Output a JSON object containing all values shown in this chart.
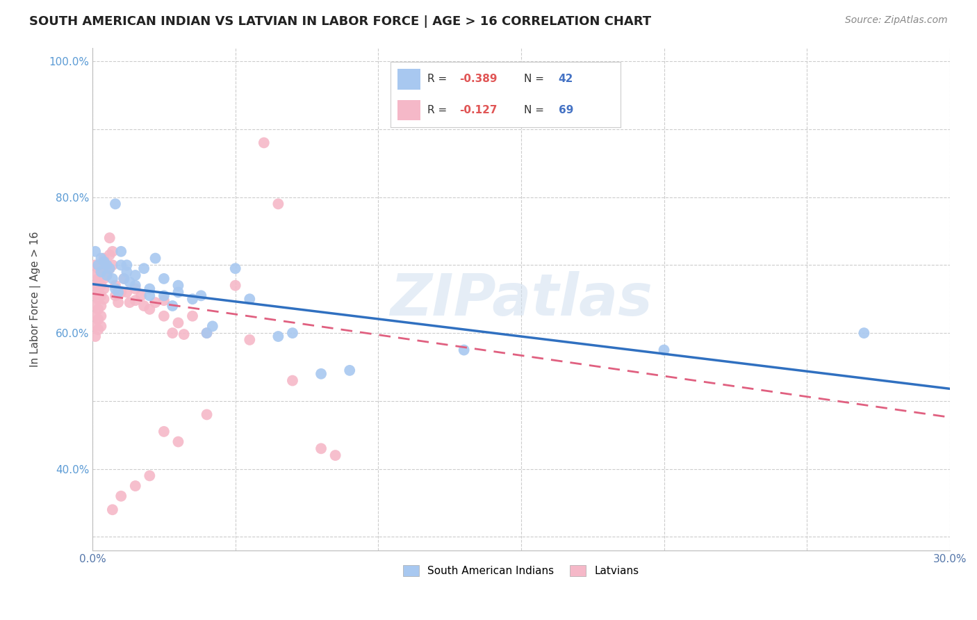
{
  "title": "SOUTH AMERICAN INDIAN VS LATVIAN IN LABOR FORCE | AGE > 16 CORRELATION CHART",
  "source": "Source: ZipAtlas.com",
  "ylabel": "In Labor Force | Age > 16",
  "x_min": 0.0,
  "x_max": 0.3,
  "y_min": 0.28,
  "y_max": 1.02,
  "x_ticks": [
    0.0,
    0.05,
    0.1,
    0.15,
    0.2,
    0.25,
    0.3
  ],
  "y_ticks": [
    0.3,
    0.4,
    0.5,
    0.6,
    0.7,
    0.8,
    0.9,
    1.0
  ],
  "blue_color": "#a8c8f0",
  "pink_color": "#f5b8c8",
  "blue_line_color": "#3070c0",
  "pink_line_color": "#e06080",
  "watermark": "ZIPatlas",
  "blue_points": [
    [
      0.001,
      0.72
    ],
    [
      0.002,
      0.7
    ],
    [
      0.003,
      0.69
    ],
    [
      0.004,
      0.705
    ],
    [
      0.005,
      0.685
    ],
    [
      0.006,
      0.695
    ],
    [
      0.007,
      0.68
    ],
    [
      0.008,
      0.665
    ],
    [
      0.009,
      0.66
    ],
    [
      0.01,
      0.7
    ],
    [
      0.01,
      0.72
    ],
    [
      0.011,
      0.68
    ],
    [
      0.012,
      0.69
    ],
    [
      0.013,
      0.675
    ],
    [
      0.015,
      0.685
    ],
    [
      0.018,
      0.695
    ],
    [
      0.02,
      0.665
    ],
    [
      0.022,
      0.71
    ],
    [
      0.025,
      0.655
    ],
    [
      0.028,
      0.64
    ],
    [
      0.03,
      0.67
    ],
    [
      0.035,
      0.65
    ],
    [
      0.038,
      0.655
    ],
    [
      0.04,
      0.6
    ],
    [
      0.042,
      0.61
    ],
    [
      0.05,
      0.695
    ],
    [
      0.055,
      0.65
    ],
    [
      0.065,
      0.595
    ],
    [
      0.07,
      0.6
    ],
    [
      0.08,
      0.54
    ],
    [
      0.09,
      0.545
    ],
    [
      0.03,
      0.66
    ],
    [
      0.025,
      0.68
    ],
    [
      0.02,
      0.655
    ],
    [
      0.015,
      0.67
    ],
    [
      0.012,
      0.7
    ],
    [
      0.008,
      0.79
    ],
    [
      0.005,
      0.7
    ],
    [
      0.003,
      0.71
    ],
    [
      0.2,
      0.575
    ],
    [
      0.27,
      0.6
    ],
    [
      0.13,
      0.575
    ]
  ],
  "pink_points": [
    [
      0.001,
      0.7
    ],
    [
      0.001,
      0.685
    ],
    [
      0.001,
      0.67
    ],
    [
      0.001,
      0.655
    ],
    [
      0.001,
      0.64
    ],
    [
      0.001,
      0.625
    ],
    [
      0.001,
      0.61
    ],
    [
      0.001,
      0.595
    ],
    [
      0.002,
      0.695
    ],
    [
      0.002,
      0.68
    ],
    [
      0.002,
      0.665
    ],
    [
      0.002,
      0.65
    ],
    [
      0.002,
      0.635
    ],
    [
      0.002,
      0.62
    ],
    [
      0.002,
      0.605
    ],
    [
      0.003,
      0.7
    ],
    [
      0.003,
      0.685
    ],
    [
      0.003,
      0.67
    ],
    [
      0.003,
      0.655
    ],
    [
      0.003,
      0.64
    ],
    [
      0.003,
      0.625
    ],
    [
      0.003,
      0.61
    ],
    [
      0.004,
      0.71
    ],
    [
      0.004,
      0.695
    ],
    [
      0.004,
      0.68
    ],
    [
      0.004,
      0.665
    ],
    [
      0.004,
      0.65
    ],
    [
      0.005,
      0.7
    ],
    [
      0.005,
      0.685
    ],
    [
      0.006,
      0.74
    ],
    [
      0.006,
      0.715
    ],
    [
      0.006,
      0.695
    ],
    [
      0.007,
      0.72
    ],
    [
      0.007,
      0.7
    ],
    [
      0.008,
      0.67
    ],
    [
      0.008,
      0.655
    ],
    [
      0.009,
      0.645
    ],
    [
      0.01,
      0.66
    ],
    [
      0.011,
      0.68
    ],
    [
      0.012,
      0.66
    ],
    [
      0.013,
      0.645
    ],
    [
      0.015,
      0.665
    ],
    [
      0.015,
      0.648
    ],
    [
      0.017,
      0.655
    ],
    [
      0.018,
      0.64
    ],
    [
      0.02,
      0.635
    ],
    [
      0.022,
      0.645
    ],
    [
      0.025,
      0.648
    ],
    [
      0.025,
      0.625
    ],
    [
      0.028,
      0.6
    ],
    [
      0.03,
      0.615
    ],
    [
      0.032,
      0.598
    ],
    [
      0.035,
      0.625
    ],
    [
      0.04,
      0.6
    ],
    [
      0.05,
      0.67
    ],
    [
      0.055,
      0.59
    ],
    [
      0.06,
      0.88
    ],
    [
      0.065,
      0.79
    ],
    [
      0.07,
      0.53
    ],
    [
      0.04,
      0.48
    ],
    [
      0.08,
      0.43
    ],
    [
      0.085,
      0.42
    ],
    [
      0.025,
      0.455
    ],
    [
      0.03,
      0.44
    ],
    [
      0.02,
      0.39
    ],
    [
      0.015,
      0.375
    ],
    [
      0.01,
      0.36
    ],
    [
      0.007,
      0.34
    ]
  ]
}
